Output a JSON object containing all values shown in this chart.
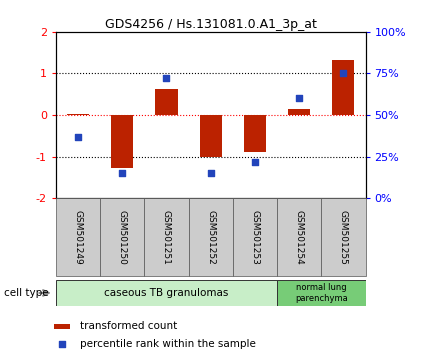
{
  "title": "GDS4256 / Hs.131081.0.A1_3p_at",
  "samples": [
    "GSM501249",
    "GSM501250",
    "GSM501251",
    "GSM501252",
    "GSM501253",
    "GSM501254",
    "GSM501255"
  ],
  "red_bars": [
    0.02,
    -1.28,
    0.62,
    -1.02,
    -0.88,
    0.15,
    1.32
  ],
  "blue_dots_pct": [
    37,
    15,
    72,
    15,
    22,
    60,
    75
  ],
  "ylim_left": [
    -2,
    2
  ],
  "ylim_right": [
    0,
    100
  ],
  "group1_label": "caseous TB granulomas",
  "group2_label": "normal lung\nparenchyma",
  "bar_color": "#bb2200",
  "dot_color": "#2244bb",
  "group1_color": "#c8eec8",
  "group2_color": "#77cc77",
  "legend_bar_label": "transformed count",
  "legend_dot_label": "percentile rank within the sample",
  "cell_type_label": "cell type"
}
